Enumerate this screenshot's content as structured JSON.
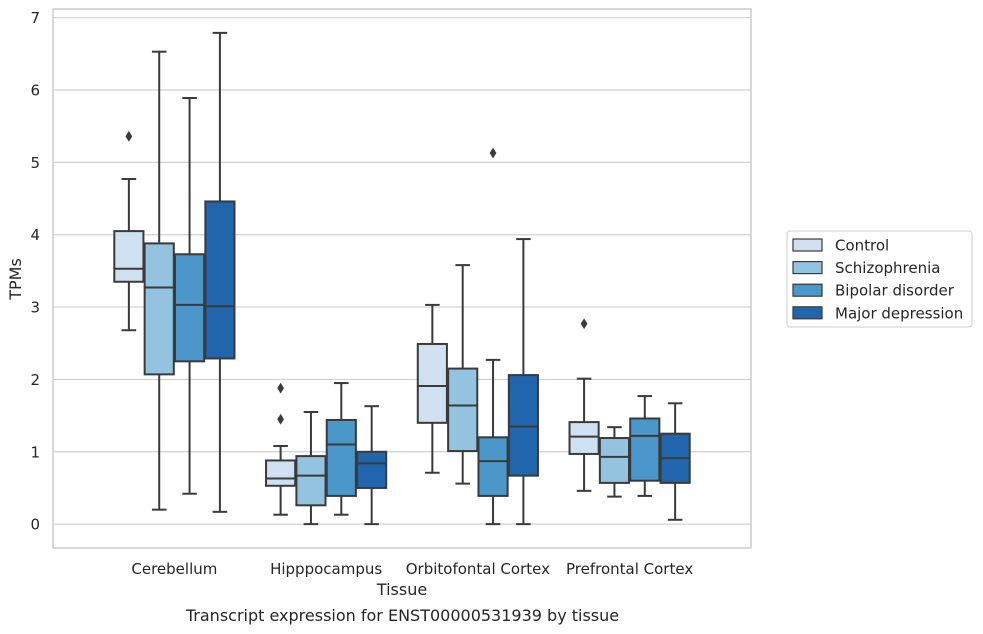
{
  "caption": "Transcript expression for ENST00000531939 by tissue",
  "colors": {
    "Control": "#cfe0f1",
    "Schizophrenia": "#93c3df",
    "Bipolar disorder": "#4b97c9",
    "Major depression": "#2166ac",
    "line": "#3a3a3a",
    "grid": "#d0d0d0",
    "frame": "#cccccc"
  },
  "chart_data": {
    "type": "box",
    "title": "",
    "xlabel": "Tissue",
    "ylabel": "TPMs",
    "ylim": [
      -0.33,
      7.12
    ],
    "yticks": [
      0,
      1,
      2,
      3,
      4,
      5,
      6,
      7
    ],
    "grid": "horizontal",
    "legend_position": "right",
    "categories": [
      "Cerebellum",
      "Hipppocampus",
      "Orbitofontal Cortex",
      "Prefrontal Cortex"
    ],
    "series": [
      {
        "name": "Control",
        "boxes": [
          {
            "whislo": 2.68,
            "q1": 3.35,
            "med": 3.53,
            "q3": 4.05,
            "whishi": 4.77,
            "fliers": [
              5.36
            ]
          },
          {
            "whislo": 0.13,
            "q1": 0.53,
            "med": 0.63,
            "q3": 0.88,
            "whishi": 1.08,
            "fliers": [
              1.88,
              1.45
            ]
          },
          {
            "whislo": 0.71,
            "q1": 1.4,
            "med": 1.91,
            "q3": 2.49,
            "whishi": 3.03,
            "fliers": []
          },
          {
            "whislo": 0.46,
            "q1": 0.97,
            "med": 1.21,
            "q3": 1.41,
            "whishi": 2.01,
            "fliers": [
              2.77
            ]
          }
        ]
      },
      {
        "name": "Schizophrenia",
        "boxes": [
          {
            "whislo": 0.2,
            "q1": 2.07,
            "med": 3.27,
            "q3": 3.88,
            "whishi": 6.53,
            "fliers": []
          },
          {
            "whislo": 0.0,
            "q1": 0.26,
            "med": 0.67,
            "q3": 0.94,
            "whishi": 1.55,
            "fliers": []
          },
          {
            "whislo": 0.56,
            "q1": 1.01,
            "med": 1.64,
            "q3": 2.15,
            "whishi": 3.58,
            "fliers": []
          },
          {
            "whislo": 0.38,
            "q1": 0.57,
            "med": 0.93,
            "q3": 1.19,
            "whishi": 1.34,
            "fliers": []
          }
        ]
      },
      {
        "name": "Bipolar disorder",
        "boxes": [
          {
            "whislo": 0.42,
            "q1": 2.25,
            "med": 3.03,
            "q3": 3.73,
            "whishi": 5.89,
            "fliers": []
          },
          {
            "whislo": 0.13,
            "q1": 0.39,
            "med": 1.1,
            "q3": 1.44,
            "whishi": 1.95,
            "fliers": []
          },
          {
            "whislo": 0.0,
            "q1": 0.39,
            "med": 0.87,
            "q3": 1.2,
            "whishi": 2.27,
            "fliers": [
              5.13
            ]
          },
          {
            "whislo": 0.39,
            "q1": 0.6,
            "med": 1.22,
            "q3": 1.46,
            "whishi": 1.77,
            "fliers": []
          }
        ]
      },
      {
        "name": "Major depression",
        "boxes": [
          {
            "whislo": 0.17,
            "q1": 2.29,
            "med": 3.01,
            "q3": 4.46,
            "whishi": 6.79,
            "fliers": []
          },
          {
            "whislo": 0.0,
            "q1": 0.5,
            "med": 0.84,
            "q3": 1.0,
            "whishi": 1.63,
            "fliers": []
          },
          {
            "whislo": 0.0,
            "q1": 0.67,
            "med": 1.35,
            "q3": 2.06,
            "whishi": 3.94,
            "fliers": []
          },
          {
            "whislo": 0.06,
            "q1": 0.57,
            "med": 0.91,
            "q3": 1.25,
            "whishi": 1.67,
            "fliers": []
          }
        ]
      }
    ]
  }
}
